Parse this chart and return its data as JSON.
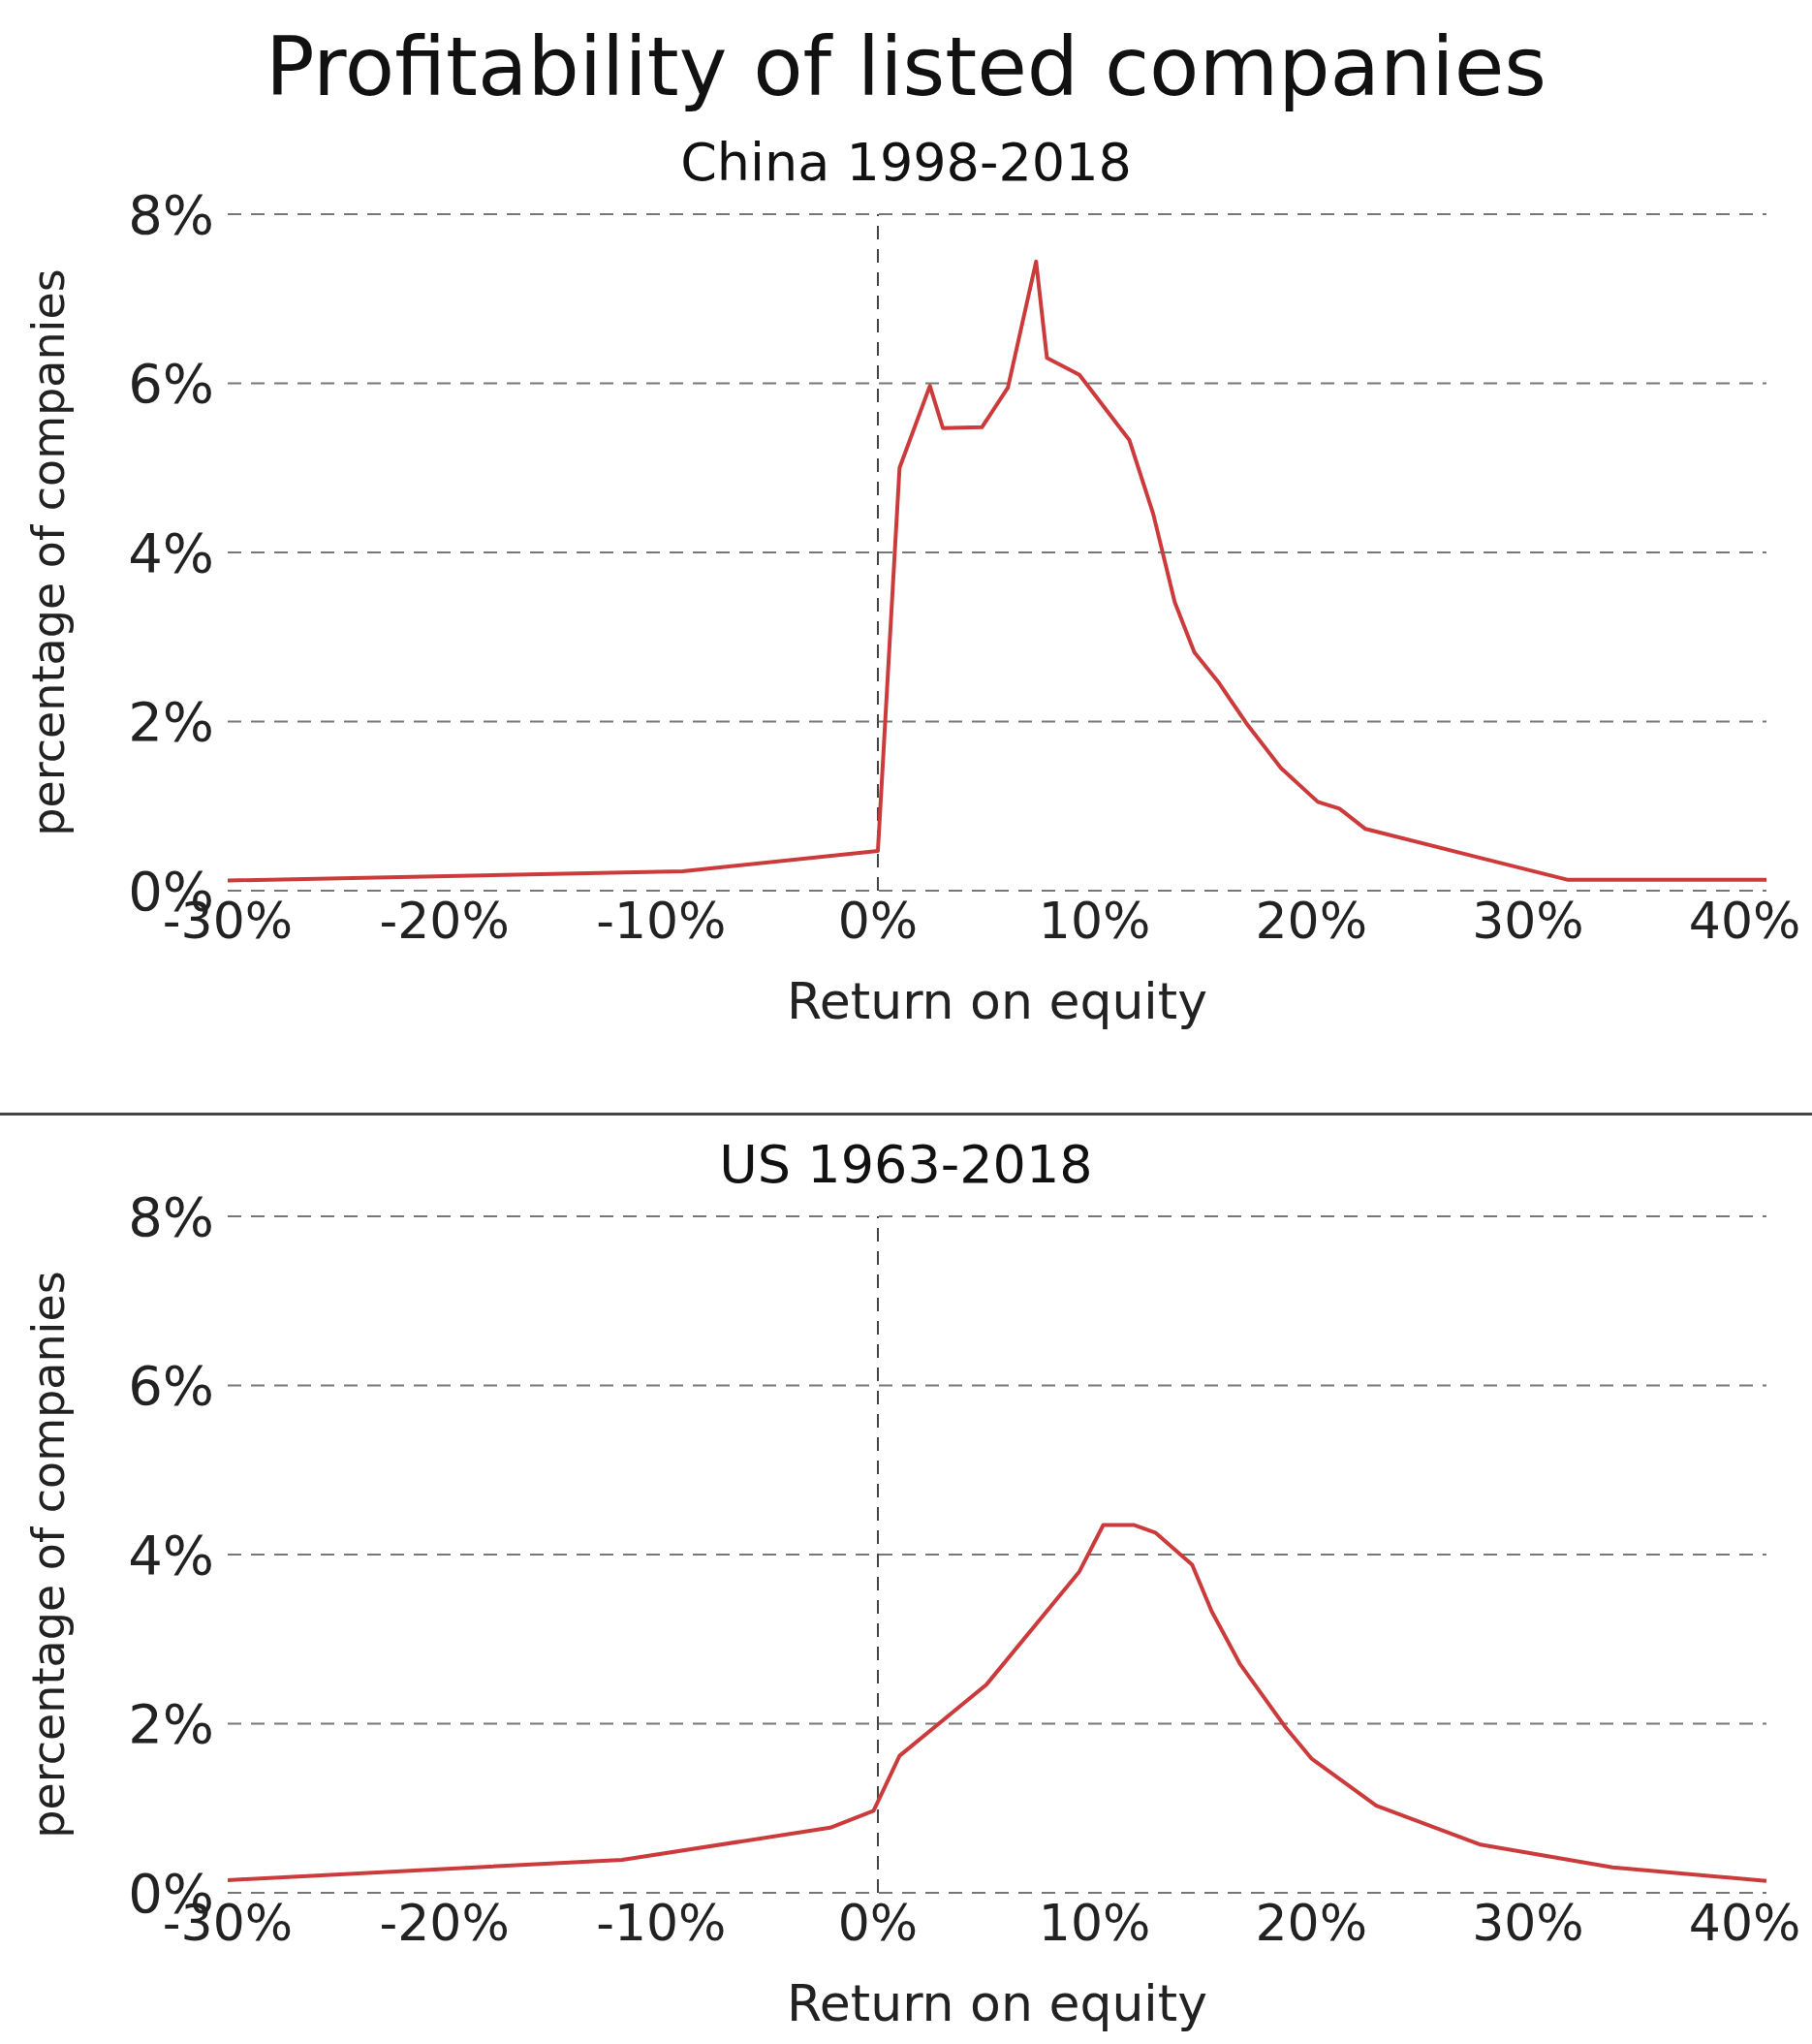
{
  "chart_data": [
    {
      "type": "line",
      "title": "Profitability of listed companies",
      "subtitle": "China 1998-2018",
      "xlabel": "Return on equity",
      "ylabel": "percentage of companies",
      "xlim": [
        -30,
        41
      ],
      "ylim": [
        0,
        8
      ],
      "xticks": [
        {
          "value": -30,
          "label": "-30%"
        },
        {
          "value": -20,
          "label": "-20%"
        },
        {
          "value": -10,
          "label": "-10%"
        },
        {
          "value": 0,
          "label": "0%"
        },
        {
          "value": 10,
          "label": "10%"
        },
        {
          "value": 20,
          "label": "20%"
        },
        {
          "value": 30,
          "label": "30%"
        },
        {
          "value": 40,
          "label": "40%"
        }
      ],
      "yticks": [
        {
          "value": 0,
          "label": "0%"
        },
        {
          "value": 2,
          "label": "2%"
        },
        {
          "value": 4,
          "label": "4%"
        },
        {
          "value": 6,
          "label": "6%"
        },
        {
          "value": 8,
          "label": "8%"
        }
      ],
      "grid": "y",
      "ref_lines": [
        {
          "axis": "x",
          "value": 0,
          "line_style": "dashed",
          "color": "#444444"
        }
      ],
      "series": [
        {
          "color": "#cc3b3b",
          "x": [
            -30,
            -9,
            0,
            1,
            2.4,
            3,
            4.8,
            6,
            7.3,
            7.8,
            9.3,
            11.6,
            12.7,
            13.7,
            14.6,
            15.7,
            17,
            18.6,
            20.3,
            21.3,
            22.5,
            31.8,
            41
          ],
          "values": [
            0.12,
            0.23,
            0.47,
            5.0,
            5.97,
            5.47,
            5.48,
            5.95,
            7.44,
            6.3,
            6.1,
            5.33,
            4.46,
            3.41,
            2.82,
            2.47,
            1.98,
            1.45,
            1.05,
            0.97,
            0.73,
            0.13,
            0.13
          ]
        }
      ]
    },
    {
      "type": "line",
      "subtitle": "US 1963-2018",
      "xlabel": "Return on equity",
      "ylabel": "percentage of companies",
      "xlim": [
        -30,
        41
      ],
      "ylim": [
        0,
        8
      ],
      "xticks": [
        {
          "value": -30,
          "label": "-30%"
        },
        {
          "value": -20,
          "label": "-20%"
        },
        {
          "value": -10,
          "label": "-10%"
        },
        {
          "value": 0,
          "label": "0%"
        },
        {
          "value": 10,
          "label": "10%"
        },
        {
          "value": 20,
          "label": "20%"
        },
        {
          "value": 30,
          "label": "30%"
        },
        {
          "value": 40,
          "label": "40%"
        }
      ],
      "yticks": [
        {
          "value": 0,
          "label": "0%"
        },
        {
          "value": 2,
          "label": "2%"
        },
        {
          "value": 4,
          "label": "4%"
        },
        {
          "value": 6,
          "label": "6%"
        },
        {
          "value": 8,
          "label": "8%"
        }
      ],
      "grid": "y",
      "ref_lines": [
        {
          "axis": "x",
          "value": 0,
          "line_style": "dashed",
          "color": "#444444"
        }
      ],
      "series": [
        {
          "color": "#cc3b3b",
          "x": [
            -30,
            -11.8,
            -2.2,
            -0.2,
            1,
            5,
            9.3,
            10.4,
            11.8,
            12.8,
            14.5,
            15.4,
            16.7,
            18.8,
            20,
            23,
            27.8,
            33.9,
            41
          ],
          "values": [
            0.15,
            0.39,
            0.77,
            0.97,
            1.62,
            2.46,
            3.8,
            4.35,
            4.35,
            4.26,
            3.88,
            3.33,
            2.71,
            1.96,
            1.59,
            1.03,
            0.57,
            0.3,
            0.14
          ]
        }
      ]
    }
  ]
}
